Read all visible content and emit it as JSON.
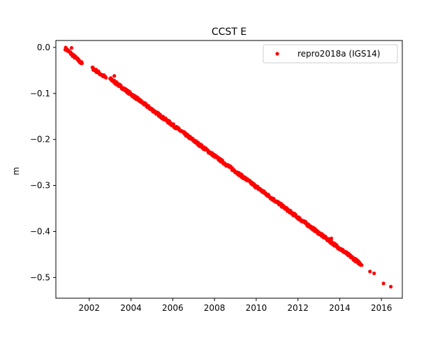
{
  "chart_data": {
    "type": "scatter",
    "title": "CCST E",
    "xlabel": "",
    "ylabel": "m",
    "xlim": [
      2000.4,
      2017.0
    ],
    "ylim": [
      -0.545,
      0.015
    ],
    "x_ticks": [
      2002,
      2004,
      2006,
      2008,
      2010,
      2012,
      2014,
      2016
    ],
    "x_tick_labels": [
      "2002",
      "2004",
      "2006",
      "2008",
      "2010",
      "2012",
      "2014",
      "2016"
    ],
    "y_ticks": [
      0.0,
      -0.1,
      -0.2,
      -0.3,
      -0.4,
      -0.5
    ],
    "y_tick_labels": [
      "0.0",
      "−0.1",
      "−0.2",
      "−0.3",
      "−0.4",
      "−0.5"
    ],
    "grid": false,
    "legend_position": "upper-right",
    "series": [
      {
        "name": "repro2018a (IGS14)",
        "color": "#ff0000",
        "marker": "circle",
        "segments": [
          {
            "start": [
              2000.85,
              -0.002
            ],
            "end": [
              2001.65,
              -0.035
            ],
            "note_points": 40
          },
          {
            "start": [
              2002.15,
              -0.045
            ],
            "end": [
              2002.8,
              -0.066
            ],
            "note_points": 30
          },
          {
            "start": [
              2003.0,
              -0.068
            ],
            "end": [
              2015.05,
              -0.472
            ],
            "note_points": 700
          }
        ],
        "points": [
          [
            2001.15,
            -0.001
          ],
          [
            2003.2,
            -0.062
          ],
          [
            2013.6,
            -0.415
          ],
          [
            2015.45,
            -0.487
          ],
          [
            2015.65,
            -0.491
          ],
          [
            2016.1,
            -0.513
          ],
          [
            2016.45,
            -0.52
          ]
        ]
      }
    ]
  }
}
